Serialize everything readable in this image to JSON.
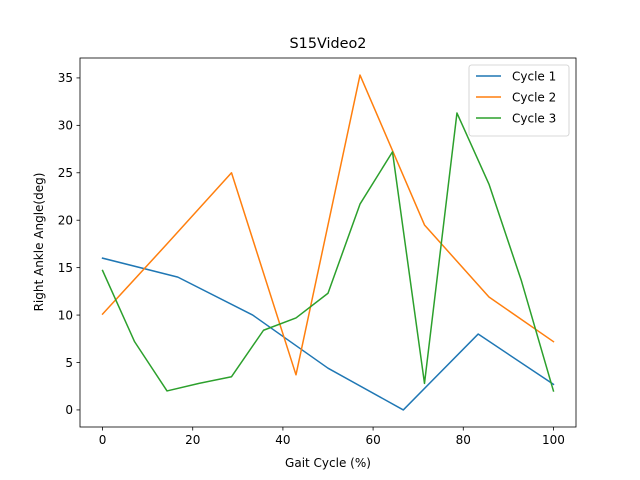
{
  "chart_data": {
    "type": "line",
    "title": "S15Video2",
    "xlabel": "Gait Cycle (%)",
    "ylabel": "Right Ankle Angle(deg)",
    "xlim": [
      -5,
      105
    ],
    "ylim": [
      -1.8,
      37.1
    ],
    "xticks": [
      0,
      20,
      40,
      60,
      80,
      100
    ],
    "yticks": [
      0,
      5,
      10,
      15,
      20,
      25,
      30,
      35
    ],
    "grid": false,
    "legend_position": "top-right",
    "series": [
      {
        "name": "Cycle 1",
        "color": "#1f77b4",
        "x": [
          0,
          16.7,
          33.3,
          50,
          66.7,
          83.3,
          100
        ],
        "y": [
          16,
          14,
          10,
          4.4,
          0,
          8,
          2.7
        ]
      },
      {
        "name": "Cycle 2",
        "color": "#ff7f0e",
        "x": [
          0,
          14.3,
          28.6,
          42.9,
          57.1,
          71.4,
          85.7,
          100
        ],
        "y": [
          10.1,
          17.5,
          25,
          3.7,
          35.3,
          19.5,
          11.9,
          7.2
        ]
      },
      {
        "name": "Cycle 3",
        "color": "#2ca02c",
        "x": [
          0,
          7.1,
          14.3,
          21.4,
          28.6,
          35.7,
          42.9,
          50,
          57.1,
          64.3,
          71.4,
          78.6,
          85.7,
          92.9,
          100
        ],
        "y": [
          14.7,
          7.2,
          2,
          2.8,
          3.5,
          8.4,
          9.7,
          12.3,
          21.7,
          27.2,
          2.8,
          31.3,
          23.8,
          13.6,
          2
        ]
      }
    ]
  }
}
